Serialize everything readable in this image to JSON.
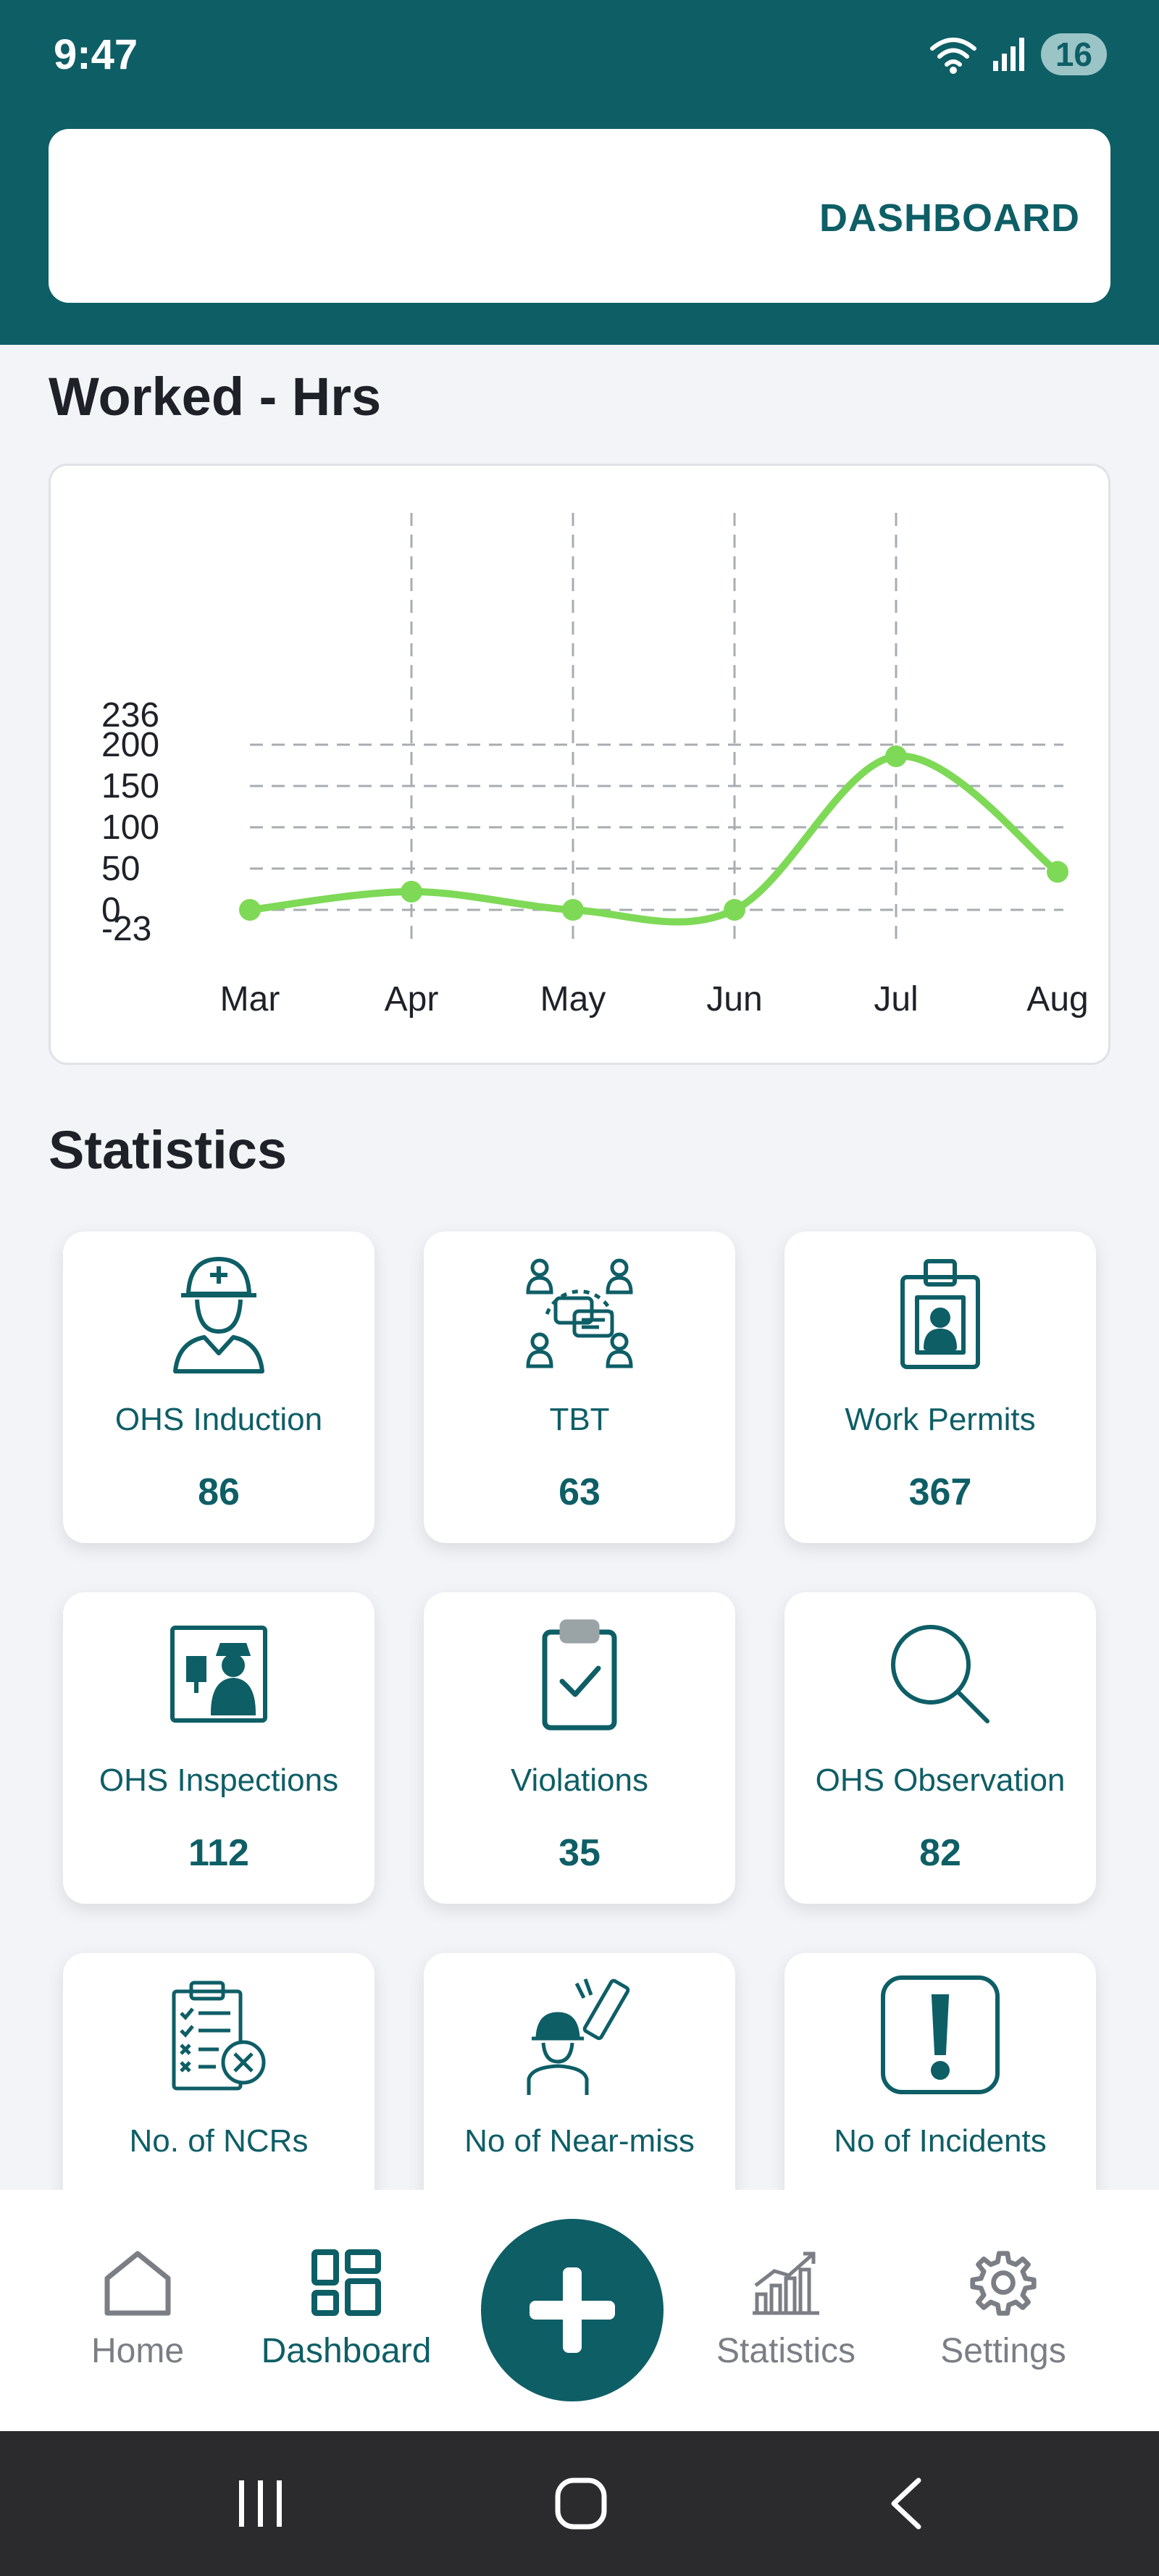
{
  "status_bar": {
    "time": "9:47",
    "battery": "16"
  },
  "header": {
    "title": "DASHBOARD"
  },
  "worked_hours": {
    "section_title": "Worked - Hrs"
  },
  "chart_data": {
    "type": "line",
    "title": "Worked - Hrs",
    "categories": [
      "Mar",
      "Apr",
      "May",
      "Jun",
      "Jul",
      "Aug"
    ],
    "series": [
      {
        "values": [
          0,
          22,
          0,
          0,
          186,
          46
        ],
        "color": "#7ed957"
      }
    ],
    "y_ticks": [
      "236",
      "200",
      "150",
      "100",
      "50",
      "0",
      "-23"
    ],
    "ylim": [
      -23,
      236
    ],
    "grid": "dashed"
  },
  "statistics": {
    "section_title": "Statistics",
    "tiles": [
      {
        "label": "OHS Induction",
        "value": "86",
        "icon": "worker-helmet-icon"
      },
      {
        "label": "TBT",
        "value": "63",
        "icon": "team-meeting-icon"
      },
      {
        "label": "Work Permits",
        "value": "367",
        "icon": "id-badge-icon"
      },
      {
        "label": "OHS Inspections",
        "value": "112",
        "icon": "inspector-icon"
      },
      {
        "label": "Violations",
        "value": "35",
        "icon": "clipboard-check-icon"
      },
      {
        "label": "OHS Observation",
        "value": "82",
        "icon": "magnifier-icon"
      },
      {
        "label": "No. of NCRs",
        "value": "",
        "icon": "checklist-cross-icon"
      },
      {
        "label": "No of Near-miss",
        "value": "",
        "icon": "near-miss-icon"
      },
      {
        "label": "No of Incidents",
        "value": "",
        "icon": "exclamation-icon"
      }
    ]
  },
  "bottom_nav": {
    "home": "Home",
    "dashboard": "Dashboard",
    "statistics": "Statistics",
    "settings": "Settings",
    "active": "dashboard"
  },
  "colors": {
    "primary": "#0e5e66",
    "chart_line": "#7ed957",
    "background": "#f2f4f7"
  }
}
